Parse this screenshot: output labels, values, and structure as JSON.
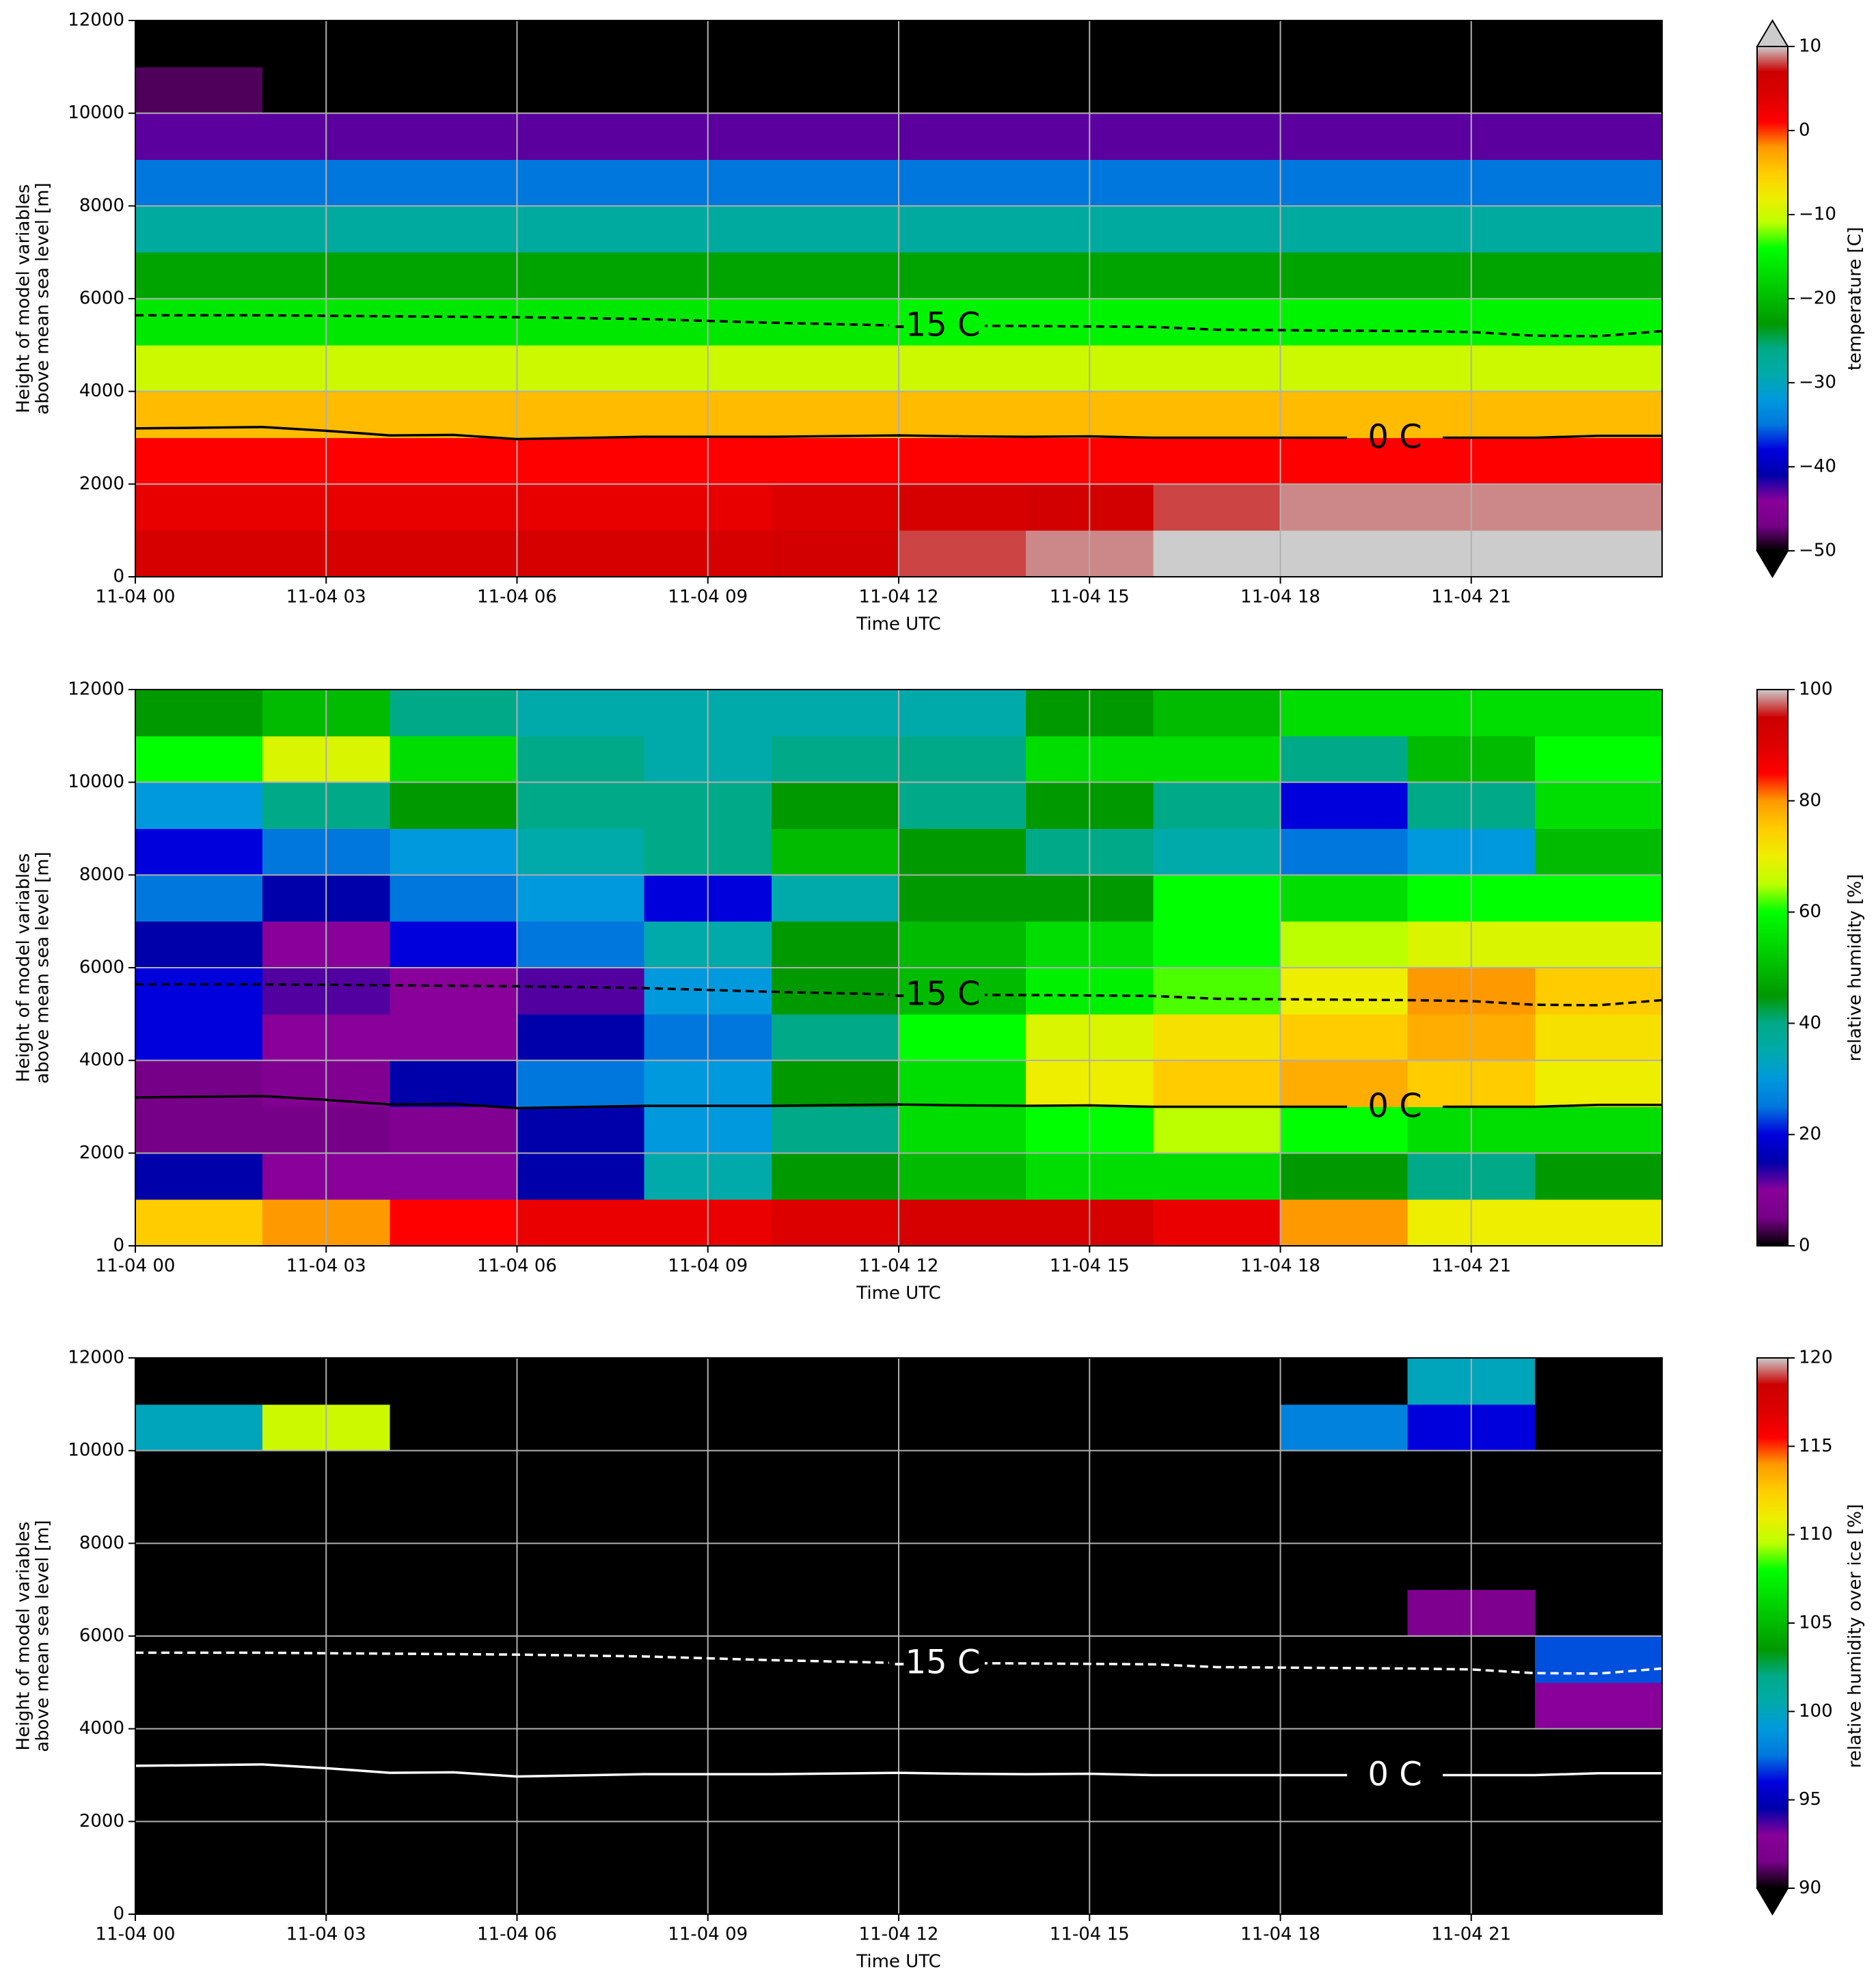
{
  "chart_data": [
    {
      "type": "heatmap",
      "x": [
        0,
        2,
        4,
        6,
        8,
        10,
        12,
        14,
        16,
        18,
        20,
        22,
        24
      ],
      "y": [
        0,
        1000,
        2000,
        3000,
        4000,
        5000,
        6000,
        7000,
        8000,
        9000,
        10000,
        11000,
        12000
      ],
      "z": [
        [
          5,
          5,
          5,
          5,
          5,
          6,
          8,
          9,
          10,
          10,
          10,
          10
        ],
        [
          3,
          3,
          3,
          3,
          3,
          4,
          5,
          6,
          8,
          9,
          9,
          9
        ],
        [
          1,
          1,
          1,
          1,
          1,
          1,
          1,
          1,
          1,
          1,
          1,
          1
        ],
        [
          -4,
          -4,
          -4,
          -4,
          -4,
          -4,
          -4,
          -4,
          -4,
          -4,
          -4,
          -4
        ],
        [
          -10,
          -10,
          -10,
          -10,
          -10,
          -10,
          -10,
          -10,
          -10,
          -10,
          -10,
          -10
        ],
        [
          -16,
          -16,
          -16,
          -16,
          -16,
          -16,
          -15,
          -15,
          -15,
          -15,
          -15,
          -15
        ],
        [
          -22,
          -22,
          -22,
          -22,
          -22,
          -22,
          -22,
          -22,
          -22,
          -22,
          -22,
          -22
        ],
        [
          -28,
          -28,
          -28,
          -28,
          -28,
          -28,
          -28,
          -28,
          -28,
          -28,
          -28,
          -28
        ],
        [
          -35,
          -35,
          -35,
          -35,
          -35,
          -35,
          -35,
          -35,
          -35,
          -35,
          -35,
          -35
        ],
        [
          -43,
          -43,
          -43,
          -43,
          -43,
          -43,
          -43,
          -43,
          -43,
          -43,
          -43,
          -43
        ],
        [
          -48,
          -52,
          -52,
          -52,
          -52,
          -52,
          -52,
          -52,
          -52,
          -52,
          -52,
          -52
        ],
        [
          -55,
          -55,
          -55,
          -55,
          -55,
          -55,
          -55,
          -55,
          -55,
          -55,
          -55,
          -55
        ]
      ],
      "xlim": [
        0,
        24
      ],
      "xticks": [
        {
          "value": 0,
          "label": "11-04 00"
        },
        {
          "value": 3,
          "label": "11-04 03"
        },
        {
          "value": 6,
          "label": "11-04 06"
        },
        {
          "value": 9,
          "label": "11-04 09"
        },
        {
          "value": 12,
          "label": "11-04 12"
        },
        {
          "value": 15,
          "label": "11-04 15"
        },
        {
          "value": 18,
          "label": "11-04 18"
        },
        {
          "value": 21,
          "label": "11-04 21"
        }
      ],
      "ylim": [
        0,
        12000
      ],
      "yticks": [
        0,
        2000,
        4000,
        6000,
        8000,
        10000,
        12000
      ],
      "xlabel": "Time UTC",
      "ylabel": [
        "Height of model variables",
        "above mean sea level [m]"
      ],
      "grid": true,
      "colormap": [
        "#000000",
        "#770088",
        "#880099",
        "#0000aa",
        "#0000dd",
        "#0077dd",
        "#0099dd",
        "#00aaaa",
        "#00aa88",
        "#009900",
        "#00bb00",
        "#00dd00",
        "#00ff00",
        "#bbff00",
        "#eeee00",
        "#ffcc00",
        "#ff9900",
        "#ff0000",
        "#dd0000",
        "#cc0000",
        "#cccccc"
      ],
      "clim": [
        -50,
        10
      ],
      "cticks": [
        {
          "value": -50,
          "label": "−50"
        },
        {
          "value": -40,
          "label": "−40"
        },
        {
          "value": -30,
          "label": "−30"
        },
        {
          "value": -20,
          "label": "−20"
        },
        {
          "value": -10,
          "label": "−10"
        },
        0,
        10
      ],
      "clabel": "temperature [C]",
      "extend": "both",
      "contours": [
        {
          "label": "-15 C",
          "color": "#000000",
          "dashed": true,
          "x": [
            0,
            2,
            4,
            6,
            8,
            10,
            12,
            14,
            16,
            17,
            20,
            21,
            22,
            23,
            24
          ],
          "y": [
            5640,
            5640,
            5620,
            5600,
            5560,
            5480,
            5420,
            5410,
            5390,
            5330,
            5300,
            5280,
            5200,
            5190,
            5300
          ]
        },
        {
          "label": "0 C",
          "color": "#000000",
          "dashed": false,
          "x": [
            0,
            2,
            3,
            4,
            5,
            6,
            8,
            10,
            12,
            13,
            14,
            15,
            16,
            18,
            20,
            21,
            22,
            23,
            24
          ],
          "y": [
            3200,
            3230,
            3150,
            3050,
            3060,
            2970,
            3020,
            3020,
            3050,
            3030,
            3020,
            3030,
            3000,
            3000,
            3000,
            3000,
            3000,
            3040,
            3040
          ]
        }
      ]
    },
    {
      "type": "heatmap",
      "x": [
        0,
        2,
        4,
        6,
        8,
        10,
        12,
        14,
        16,
        18,
        20,
        22,
        24
      ],
      "y": [
        0,
        1000,
        2000,
        3000,
        4000,
        5000,
        6000,
        7000,
        8000,
        9000,
        10000,
        11000,
        12000
      ],
      "z": [
        [
          75,
          80,
          85,
          88,
          88,
          90,
          92,
          92,
          88,
          80,
          70,
          70
        ],
        [
          15,
          10,
          10,
          15,
          35,
          45,
          50,
          55,
          55,
          45,
          40,
          45
        ],
        [
          5,
          5,
          8,
          15,
          30,
          40,
          55,
          60,
          65,
          60,
          55,
          55
        ],
        [
          5,
          8,
          15,
          25,
          30,
          45,
          55,
          70,
          75,
          78,
          75,
          70
        ],
        [
          20,
          10,
          10,
          15,
          25,
          40,
          60,
          68,
          72,
          75,
          78,
          72
        ],
        [
          20,
          12,
          10,
          12,
          30,
          45,
          50,
          58,
          62,
          70,
          80,
          75
        ],
        [
          15,
          10,
          20,
          25,
          35,
          45,
          50,
          55,
          60,
          65,
          68,
          68
        ],
        [
          25,
          15,
          25,
          30,
          20,
          35,
          45,
          45,
          60,
          55,
          60,
          60
        ],
        [
          20,
          25,
          30,
          35,
          40,
          50,
          45,
          40,
          35,
          25,
          30,
          50
        ],
        [
          30,
          40,
          45,
          40,
          40,
          45,
          40,
          45,
          40,
          20,
          40,
          55
        ],
        [
          60,
          68,
          55,
          40,
          35,
          40,
          40,
          55,
          55,
          40,
          50,
          60
        ],
        [
          45,
          50,
          40,
          35,
          35,
          35,
          35,
          45,
          50,
          55,
          55,
          55
        ]
      ],
      "xlim": [
        0,
        24
      ],
      "xticks": [
        {
          "value": 0,
          "label": "11-04 00"
        },
        {
          "value": 3,
          "label": "11-04 03"
        },
        {
          "value": 6,
          "label": "11-04 06"
        },
        {
          "value": 9,
          "label": "11-04 09"
        },
        {
          "value": 12,
          "label": "11-04 12"
        },
        {
          "value": 15,
          "label": "11-04 15"
        },
        {
          "value": 18,
          "label": "11-04 18"
        },
        {
          "value": 21,
          "label": "11-04 21"
        }
      ],
      "ylim": [
        0,
        12000
      ],
      "yticks": [
        0,
        2000,
        4000,
        6000,
        8000,
        10000,
        12000
      ],
      "xlabel": "Time UTC",
      "ylabel": [
        "Height of model variables",
        "above mean sea level [m]"
      ],
      "grid": true,
      "colormap": [
        "#000000",
        "#770088",
        "#880099",
        "#0000aa",
        "#0000dd",
        "#0077dd",
        "#0099dd",
        "#00aaaa",
        "#00aa88",
        "#009900",
        "#00bb00",
        "#00dd00",
        "#00ff00",
        "#bbff00",
        "#eeee00",
        "#ffcc00",
        "#ff9900",
        "#ff0000",
        "#dd0000",
        "#cc0000",
        "#cccccc"
      ],
      "clim": [
        0,
        100
      ],
      "cticks": [
        0,
        20,
        40,
        60,
        80,
        100
      ],
      "clabel": "relative humidity [%]",
      "extend": "neither",
      "contours": [
        {
          "label": "-15 C",
          "color": "#000000",
          "dashed": true,
          "x": [
            0,
            2,
            4,
            6,
            8,
            10,
            12,
            14,
            16,
            17,
            20,
            21,
            22,
            23,
            24
          ],
          "y": [
            5640,
            5640,
            5620,
            5600,
            5560,
            5480,
            5420,
            5410,
            5390,
            5330,
            5300,
            5280,
            5200,
            5190,
            5300
          ]
        },
        {
          "label": "0 C",
          "color": "#000000",
          "dashed": false,
          "x": [
            0,
            2,
            3,
            4,
            5,
            6,
            8,
            10,
            12,
            13,
            14,
            15,
            16,
            18,
            20,
            21,
            22,
            23,
            24
          ],
          "y": [
            3200,
            3230,
            3150,
            3050,
            3060,
            2970,
            3020,
            3020,
            3050,
            3030,
            3020,
            3030,
            3000,
            3000,
            3000,
            3000,
            3000,
            3040,
            3040
          ]
        }
      ]
    },
    {
      "type": "heatmap",
      "x": [
        0,
        2,
        4,
        6,
        8,
        10,
        12,
        14,
        16,
        18,
        20,
        22,
        24
      ],
      "y": [
        0,
        1000,
        2000,
        3000,
        4000,
        5000,
        6000,
        7000,
        8000,
        9000,
        10000,
        11000,
        12000
      ],
      "z": [
        [
          85,
          85,
          85,
          85,
          85,
          85,
          85,
          85,
          85,
          85,
          85,
          85
        ],
        [
          85,
          85,
          85,
          85,
          85,
          85,
          85,
          85,
          85,
          85,
          85,
          85
        ],
        [
          85,
          85,
          85,
          85,
          85,
          85,
          85,
          85,
          85,
          85,
          85,
          85
        ],
        [
          85,
          85,
          85,
          85,
          85,
          85,
          85,
          85,
          85,
          85,
          85,
          85
        ],
        [
          85,
          85,
          85,
          85,
          85,
          85,
          85,
          85,
          85,
          85,
          85,
          93
        ],
        [
          85,
          85,
          85,
          85,
          85,
          85,
          85,
          85,
          85,
          85,
          85,
          97
        ],
        [
          85,
          85,
          85,
          85,
          85,
          85,
          85,
          85,
          85,
          85,
          92,
          85
        ],
        [
          85,
          85,
          85,
          85,
          85,
          85,
          85,
          85,
          85,
          85,
          85,
          85
        ],
        [
          85,
          85,
          85,
          85,
          85,
          85,
          85,
          85,
          85,
          85,
          85,
          85
        ],
        [
          85,
          85,
          85,
          85,
          85,
          85,
          85,
          85,
          85,
          85,
          85,
          85
        ],
        [
          100,
          110,
          85,
          85,
          85,
          85,
          85,
          85,
          85,
          98,
          96,
          85
        ],
        [
          85,
          85,
          85,
          85,
          85,
          85,
          85,
          85,
          85,
          85,
          100,
          85
        ]
      ],
      "xlim": [
        0,
        24
      ],
      "xticks": [
        {
          "value": 0,
          "label": "11-04 00"
        },
        {
          "value": 3,
          "label": "11-04 03"
        },
        {
          "value": 6,
          "label": "11-04 06"
        },
        {
          "value": 9,
          "label": "11-04 09"
        },
        {
          "value": 12,
          "label": "11-04 12"
        },
        {
          "value": 15,
          "label": "11-04 15"
        },
        {
          "value": 18,
          "label": "11-04 18"
        },
        {
          "value": 21,
          "label": "11-04 21"
        }
      ],
      "ylim": [
        0,
        12000
      ],
      "yticks": [
        0,
        2000,
        4000,
        6000,
        8000,
        10000,
        12000
      ],
      "xlabel": "Time UTC",
      "ylabel": [
        "Height of model variables",
        "above mean sea level [m]"
      ],
      "grid": true,
      "colormap": [
        "#000000",
        "#770088",
        "#880099",
        "#0000aa",
        "#0000dd",
        "#0077dd",
        "#0099dd",
        "#00aaaa",
        "#00aa88",
        "#009900",
        "#00bb00",
        "#00dd00",
        "#00ff00",
        "#bbff00",
        "#eeee00",
        "#ffcc00",
        "#ff9900",
        "#ff0000",
        "#dd0000",
        "#cc0000",
        "#cccccc"
      ],
      "clim": [
        90,
        120
      ],
      "cticks": [
        90,
        95,
        100,
        105,
        110,
        115,
        120
      ],
      "clabel": "relative humidity over ice [%]",
      "extend": "min",
      "contours": [
        {
          "label": "-15 C",
          "color": "#ffffff",
          "dashed": true,
          "x": [
            0,
            2,
            4,
            6,
            8,
            10,
            12,
            14,
            16,
            17,
            20,
            21,
            22,
            23,
            24
          ],
          "y": [
            5640,
            5640,
            5620,
            5600,
            5560,
            5480,
            5420,
            5410,
            5390,
            5330,
            5300,
            5280,
            5200,
            5190,
            5300
          ]
        },
        {
          "label": "0 C",
          "color": "#ffffff",
          "dashed": false,
          "x": [
            0,
            2,
            3,
            4,
            5,
            6,
            8,
            10,
            12,
            13,
            14,
            15,
            16,
            18,
            20,
            21,
            22,
            23,
            24
          ],
          "y": [
            3200,
            3230,
            3150,
            3050,
            3060,
            2970,
            3020,
            3020,
            3050,
            3030,
            3020,
            3030,
            3000,
            3000,
            3000,
            3000,
            3000,
            3040,
            3040
          ]
        }
      ]
    }
  ]
}
